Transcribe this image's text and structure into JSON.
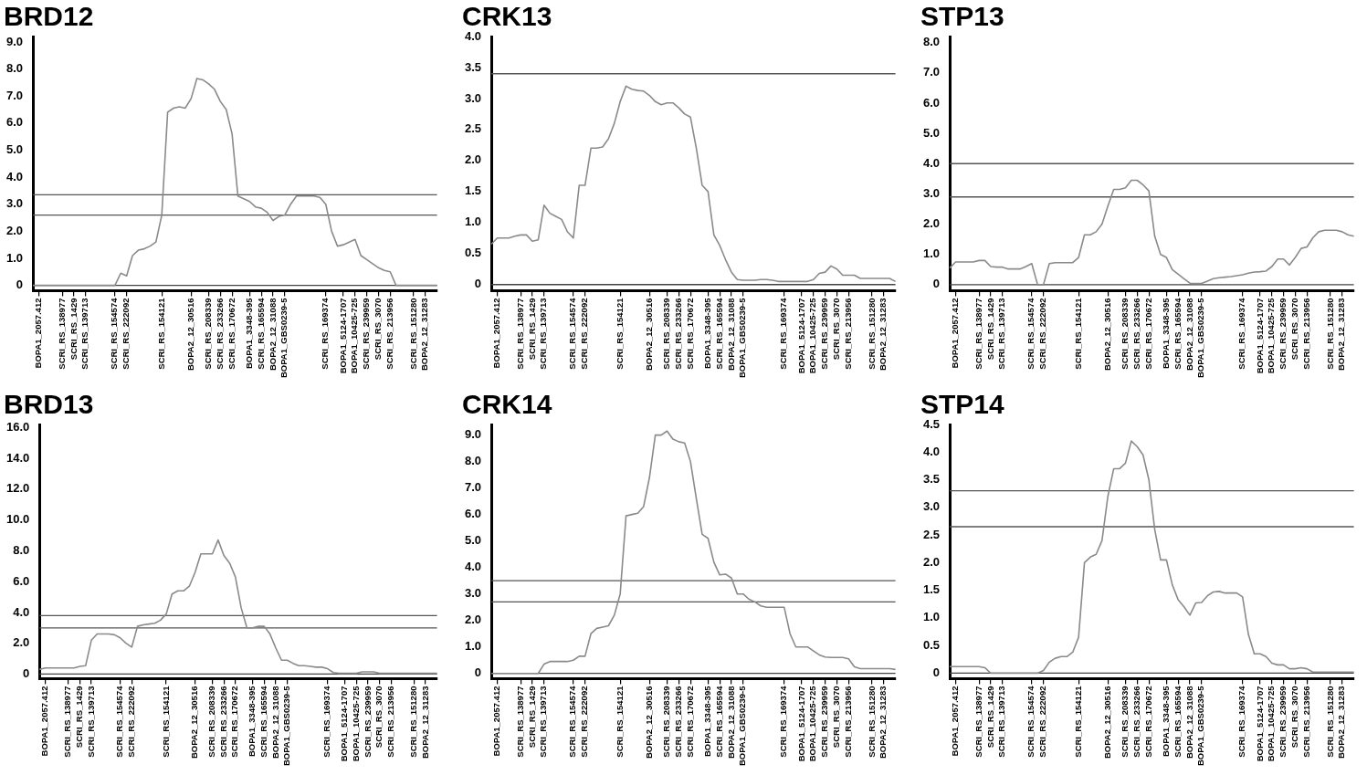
{
  "chart_data": [
    {
      "type": "line",
      "title": "BRD12",
      "categories": [
        null,
        "BOPA1_2057.412",
        null,
        null,
        null,
        "SCRI_RS_138977",
        null,
        "SCRI_RS_1429",
        null,
        "SCRI_RS_139713",
        null,
        null,
        null,
        null,
        "SCRI_RS_154574",
        null,
        "SCRI_RS_222092",
        null,
        null,
        null,
        null,
        null,
        "SCRI_RS_154121",
        null,
        null,
        null,
        null,
        "BOPA2_12_30516",
        null,
        null,
        "SCRI_RS_208339",
        null,
        "SCRI_RS_233266",
        null,
        "SCRI_RS_170672",
        null,
        null,
        "BOPA1_3348-395",
        null,
        "SCRI_RS_165594",
        null,
        "BOPA2_12_31088",
        null,
        "BOPA1_GBS0239-5",
        null,
        null,
        null,
        null,
        null,
        null,
        "SCRI_RS_169374",
        null,
        null,
        "BOPA1_5124-1707",
        null,
        "BOPA1_10425-725",
        null,
        "SCRI_RS_239959",
        null,
        "SCRI_RS_3070",
        null,
        "SCRI_RS_213956",
        null,
        null,
        null,
        "SCRI_RS_151280",
        null,
        "BOPA2_12_31283",
        null,
        null
      ],
      "series": [
        {
          "color": "#8a8a8a",
          "values": [
            0,
            0,
            0,
            0,
            0,
            0,
            0,
            0,
            0,
            0,
            0,
            0,
            0,
            0,
            0,
            0.45,
            0.35,
            1.1,
            1.3,
            1.35,
            1.45,
            1.6,
            2.6,
            6.4,
            6.55,
            6.6,
            6.55,
            6.9,
            7.65,
            7.6,
            7.45,
            7.25,
            6.8,
            6.5,
            5.6,
            3.3,
            3.2,
            3.1,
            2.9,
            2.85,
            2.7,
            2.4,
            2.55,
            2.6,
            3.0,
            3.3,
            3.3,
            3.3,
            3.3,
            3.25,
            3.0,
            2.0,
            1.45,
            1.5,
            1.6,
            1.7,
            1.1,
            0.95,
            0.8,
            0.65,
            0.55,
            0.5,
            0,
            0,
            0,
            0,
            0,
            0,
            0,
            0
          ]
        }
      ],
      "ylim": [
        -0.2,
        9.2
      ],
      "yticks": [
        0,
        {
          "value": 1,
          "label": "1.0"
        },
        {
          "value": 2,
          "label": "2.0"
        },
        {
          "value": 3,
          "label": "3.0"
        },
        {
          "value": 4,
          "label": "4.0"
        },
        {
          "value": 5,
          "label": "5.0"
        },
        {
          "value": 6,
          "label": "6.0"
        },
        {
          "value": 7,
          "label": "7.0"
        },
        {
          "value": 8,
          "label": "8.0"
        },
        {
          "value": 9,
          "label": "9.0"
        }
      ],
      "ref_lines": [
        {
          "axis": "y",
          "value": 3.35,
          "color": "#555555"
        },
        {
          "axis": "y",
          "value": 2.6,
          "color": "#555555"
        },
        {
          "axis": "y",
          "value": 0,
          "color": "#444444"
        }
      ]
    },
    {
      "type": "line",
      "title": "CRK13",
      "categories": [
        null,
        "BOPA1_2057.412",
        null,
        null,
        null,
        "SCRI_RS_138977",
        null,
        "SCRI_RS_1429",
        null,
        "SCRI_RS_139713",
        null,
        null,
        null,
        null,
        "SCRI_RS_154574",
        null,
        "SCRI_RS_222092",
        null,
        null,
        null,
        null,
        null,
        "SCRI_RS_154121",
        null,
        null,
        null,
        null,
        "BOPA2_12_30516",
        null,
        null,
        "SCRI_RS_208339",
        null,
        "SCRI_RS_233266",
        null,
        "SCRI_RS_170672",
        null,
        null,
        "BOPA1_3348-395",
        null,
        "SCRI_RS_165594",
        null,
        "BOPA2_12_31088",
        null,
        "BOPA1_GBS0239-5",
        null,
        null,
        null,
        null,
        null,
        null,
        "SCRI_RS_169374",
        null,
        null,
        "BOPA1_5124-1707",
        null,
        "BOPA1_10425-725",
        null,
        "SCRI_RS_239959",
        null,
        "SCRI_RS_3070",
        null,
        "SCRI_RS_213956",
        null,
        null,
        null,
        "SCRI_RS_151280",
        null,
        "BOPA2_12_31283",
        null,
        null
      ],
      "series": [
        {
          "color": "#8a8a8a",
          "values": [
            0.65,
            0.75,
            0.75,
            0.75,
            0.78,
            0.8,
            0.8,
            0.7,
            0.72,
            1.28,
            1.15,
            1.1,
            1.05,
            0.85,
            0.75,
            1.6,
            1.6,
            2.2,
            2.2,
            2.22,
            2.35,
            2.6,
            2.95,
            3.2,
            3.15,
            3.13,
            3.12,
            3.05,
            2.95,
            2.9,
            2.93,
            2.93,
            2.85,
            2.75,
            2.7,
            2.2,
            1.6,
            1.5,
            0.8,
            0.63,
            0.4,
            0.2,
            0.08,
            0.07,
            0.07,
            0.07,
            0.08,
            0.08,
            0.07,
            0.05,
            0.05,
            0.05,
            0.05,
            0.05,
            0.05,
            0.08,
            0.18,
            0.2,
            0.3,
            0.25,
            0.15,
            0.15,
            0.15,
            0.1,
            0.1,
            0.1,
            0.1,
            0.1,
            0.1,
            0.05
          ]
        }
      ],
      "ylim": [
        -0.1,
        4.0
      ],
      "yticks": [
        0,
        0.5,
        {
          "value": 1,
          "label": "1.0"
        },
        1.5,
        {
          "value": 2,
          "label": "2.0"
        },
        2.5,
        {
          "value": 3,
          "label": "3.0"
        },
        3.5,
        {
          "value": 4,
          "label": "4.0"
        }
      ],
      "ref_lines": [
        {
          "axis": "y",
          "value": 3.4,
          "color": "#555555"
        },
        {
          "axis": "y",
          "value": 0,
          "color": "#444444"
        }
      ]
    },
    {
      "type": "line",
      "title": "STP13",
      "categories": [
        null,
        "BOPA1_2057.412",
        null,
        null,
        null,
        "SCRI_RS_138977",
        null,
        "SCRI_RS_1429",
        null,
        "SCRI_RS_139713",
        null,
        null,
        null,
        null,
        "SCRI_RS_154574",
        null,
        "SCRI_RS_222092",
        null,
        null,
        null,
        null,
        null,
        "SCRI_RS_154121",
        null,
        null,
        null,
        null,
        "BOPA2_12_30516",
        null,
        null,
        "SCRI_RS_208339",
        null,
        "SCRI_RS_233266",
        null,
        "SCRI_RS_170672",
        null,
        null,
        "BOPA1_3348-395",
        null,
        "SCRI_RS_165594",
        null,
        "BOPA2_12_31088",
        null,
        "BOPA1_GBS0239-5",
        null,
        null,
        null,
        null,
        null,
        null,
        "SCRI_RS_169374",
        null,
        null,
        "BOPA1_5124-1707",
        null,
        "BOPA1_10425-725",
        null,
        "SCRI_RS_239959",
        null,
        "SCRI_RS_3070",
        null,
        "SCRI_RS_213956",
        null,
        null,
        null,
        "SCRI_RS_151280",
        null,
        "BOPA2_12_31283",
        null,
        null
      ],
      "series": [
        {
          "color": "#8a8a8a",
          "values": [
            0.55,
            0.75,
            0.75,
            0.75,
            0.75,
            0.8,
            0.8,
            0.6,
            0.58,
            0.58,
            0.52,
            0.52,
            0.52,
            0.6,
            0.7,
            0,
            0,
            0.7,
            0.73,
            0.73,
            0.73,
            0.73,
            0.9,
            1.65,
            1.65,
            1.75,
            2.0,
            2.6,
            3.15,
            3.15,
            3.2,
            3.45,
            3.45,
            3.3,
            3.1,
            1.6,
            1.0,
            0.9,
            0.5,
            0.35,
            0.2,
            0.05,
            0.04,
            0.04,
            0.12,
            0.2,
            0.23,
            0.25,
            0.27,
            0.3,
            0.33,
            0.38,
            0.42,
            0.43,
            0.45,
            0.6,
            0.85,
            0.85,
            0.65,
            0.9,
            1.2,
            1.25,
            1.55,
            1.75,
            1.8,
            1.8,
            1.8,
            1.75,
            1.65,
            1.6
          ]
        }
      ],
      "ylim": [
        -0.2,
        8.2
      ],
      "yticks": [
        0,
        {
          "value": 1,
          "label": "1.0"
        },
        {
          "value": 2,
          "label": "2.0"
        },
        {
          "value": 3,
          "label": "3.0"
        },
        {
          "value": 4,
          "label": "4.0"
        },
        {
          "value": 5,
          "label": "5.0"
        },
        {
          "value": 6,
          "label": "6.0"
        },
        {
          "value": 7,
          "label": "7.0"
        },
        {
          "value": 8,
          "label": "8.0"
        }
      ],
      "ref_lines": [
        {
          "axis": "y",
          "value": 4.0,
          "color": "#555555"
        },
        {
          "axis": "y",
          "value": 2.9,
          "color": "#555555"
        },
        {
          "axis": "y",
          "value": 0,
          "color": "#444444"
        }
      ]
    },
    {
      "type": "line",
      "title": "BRD13",
      "categories": [
        null,
        "BOPA1_2057.412",
        null,
        null,
        null,
        "SCRI_RS_138977",
        null,
        "SCRI_RS_1429",
        null,
        "SCRI_RS_139713",
        null,
        null,
        null,
        null,
        "SCRI_RS_154574",
        null,
        "SCRI_RS_222092",
        null,
        null,
        null,
        null,
        null,
        "SCRI_RS_154121",
        null,
        null,
        null,
        null,
        "BOPA2_12_30516",
        null,
        null,
        "SCRI_RS_208339",
        null,
        "SCRI_RS_233266",
        null,
        "SCRI_RS_170672",
        null,
        null,
        "BOPA1_3348-395",
        null,
        "SCRI_RS_165594",
        null,
        "BOPA2_12_31088",
        null,
        "BOPA1_GBS0239-5",
        null,
        null,
        null,
        null,
        null,
        null,
        "SCRI_RS_169374",
        null,
        null,
        "BOPA1_5124-1707",
        null,
        "BOPA1_10425-725",
        null,
        "SCRI_RS_239959",
        null,
        "SCRI_RS_3070",
        null,
        "SCRI_RS_213956",
        null,
        null,
        null,
        "SCRI_RS_151280",
        null,
        "BOPA2_12_31283",
        null,
        null
      ],
      "series": [
        {
          "color": "#8a8a8a",
          "values": [
            0.3,
            0.4,
            0.4,
            0.4,
            0.4,
            0.4,
            0.4,
            0.5,
            0.55,
            2.2,
            2.6,
            2.6,
            2.6,
            2.55,
            2.35,
            2.0,
            1.75,
            3.1,
            3.2,
            3.25,
            3.3,
            3.5,
            3.9,
            5.2,
            5.4,
            5.4,
            5.7,
            6.6,
            7.8,
            7.8,
            7.8,
            8.7,
            7.7,
            7.2,
            6.3,
            4.3,
            3.0,
            3.0,
            3.1,
            3.1,
            2.6,
            1.7,
            0.9,
            0.9,
            0.7,
            0.55,
            0.55,
            0.5,
            0.45,
            0.45,
            0.35,
            0.1,
            0.05,
            0.05,
            0.05,
            0.05,
            0.15,
            0.15,
            0.15,
            0.05,
            0.05,
            0.05,
            0.05,
            0.05,
            0.05,
            0.05,
            0.05,
            0.05,
            0.05,
            0.05
          ]
        }
      ],
      "ylim": [
        -0.3,
        16.2
      ],
      "yticks": [
        0,
        {
          "value": 2,
          "label": "2.0"
        },
        {
          "value": 4,
          "label": "4.0"
        },
        {
          "value": 6,
          "label": "6.0"
        },
        {
          "value": 8,
          "label": "8.0"
        },
        {
          "value": 10,
          "label": "10.0"
        },
        {
          "value": 12,
          "label": "12.0"
        },
        {
          "value": 14,
          "label": "14.0"
        },
        {
          "value": 16,
          "label": "16.0"
        }
      ],
      "ref_lines": [
        {
          "axis": "y",
          "value": 3.8,
          "color": "#555555"
        },
        {
          "axis": "y",
          "value": 3.0,
          "color": "#555555"
        },
        {
          "axis": "y",
          "value": 0,
          "color": "#444444"
        }
      ]
    },
    {
      "type": "line",
      "title": "CRK14",
      "categories": [
        null,
        "BOPA1_2057.412",
        null,
        null,
        null,
        "SCRI_RS_138977",
        null,
        "SCRI_RS_1429",
        null,
        "SCRI_RS_139713",
        null,
        null,
        null,
        null,
        "SCRI_RS_154574",
        null,
        "SCRI_RS_222092",
        null,
        null,
        null,
        null,
        null,
        "SCRI_RS_154121",
        null,
        null,
        null,
        null,
        "BOPA2_12_30516",
        null,
        null,
        "SCRI_RS_208339",
        null,
        "SCRI_RS_233266",
        null,
        "SCRI_RS_170672",
        null,
        null,
        "BOPA1_3348-395",
        null,
        "SCRI_RS_165594",
        null,
        "BOPA2_12_31088",
        null,
        "BOPA1_GBS0239-5",
        null,
        null,
        null,
        null,
        null,
        null,
        "SCRI_RS_169374",
        null,
        null,
        "BOPA1_5124-1707",
        null,
        "BOPA1_10425-725",
        null,
        "SCRI_RS_239959",
        null,
        "SCRI_RS_3070",
        null,
        "SCRI_RS_213956",
        null,
        null,
        null,
        "SCRI_RS_151280",
        null,
        "BOPA2_12_31283",
        null,
        null
      ],
      "series": [
        {
          "color": "#8a8a8a",
          "values": [
            0,
            0,
            0,
            0,
            0,
            0,
            0,
            0,
            0,
            0.35,
            0.45,
            0.45,
            0.45,
            0.45,
            0.5,
            0.65,
            0.65,
            1.5,
            1.7,
            1.75,
            1.8,
            2.2,
            3.0,
            5.95,
            6.0,
            6.05,
            6.3,
            7.4,
            9.0,
            9.0,
            9.15,
            8.85,
            8.75,
            8.7,
            8.0,
            6.6,
            5.25,
            5.1,
            4.2,
            3.72,
            3.75,
            3.6,
            3.0,
            3.0,
            2.8,
            2.7,
            2.55,
            2.5,
            2.5,
            2.5,
            2.5,
            1.5,
            1.0,
            1.0,
            1.0,
            0.85,
            0.7,
            0.62,
            0.6,
            0.6,
            0.6,
            0.55,
            0.25,
            0.18,
            0.18,
            0.18,
            0.18,
            0.18,
            0.18,
            0.15
          ]
        }
      ],
      "ylim": [
        -0.2,
        9.4
      ],
      "yticks": [
        0,
        {
          "value": 1,
          "label": "1.0"
        },
        {
          "value": 2,
          "label": "2.0"
        },
        {
          "value": 3,
          "label": "3.0"
        },
        {
          "value": 4,
          "label": "4.0"
        },
        {
          "value": 5,
          "label": "5.0"
        },
        {
          "value": 6,
          "label": "6.0"
        },
        {
          "value": 7,
          "label": "7.0"
        },
        {
          "value": 8,
          "label": "8.0"
        },
        {
          "value": 9,
          "label": "9.0"
        }
      ],
      "ref_lines": [
        {
          "axis": "y",
          "value": 3.5,
          "color": "#555555"
        },
        {
          "axis": "y",
          "value": 2.7,
          "color": "#555555"
        },
        {
          "axis": "y",
          "value": 0,
          "color": "#444444"
        }
      ]
    },
    {
      "type": "line",
      "title": "STP14",
      "categories": [
        null,
        "BOPA1_2057.412",
        null,
        null,
        null,
        "SCRI_RS_138977",
        null,
        "SCRI_RS_1429",
        null,
        "SCRI_RS_139713",
        null,
        null,
        null,
        null,
        "SCRI_RS_154574",
        null,
        "SCRI_RS_222092",
        null,
        null,
        null,
        null,
        null,
        "SCRI_RS_154121",
        null,
        null,
        null,
        null,
        "BOPA2_12_30516",
        null,
        null,
        "SCRI_RS_208339",
        null,
        "SCRI_RS_233266",
        null,
        "SCRI_RS_170672",
        null,
        null,
        "BOPA1_3348-395",
        null,
        "SCRI_RS_165594",
        null,
        "BOPA2_12_31088",
        null,
        "BOPA1_GBS0239-5",
        null,
        null,
        null,
        null,
        null,
        null,
        "SCRI_RS_169374",
        null,
        null,
        "BOPA1_5124-1707",
        null,
        "BOPA1_10425-725",
        null,
        "SCRI_RS_239959",
        null,
        "SCRI_RS_3070",
        null,
        "SCRI_RS_213956",
        null,
        null,
        null,
        "SCRI_RS_151280",
        null,
        "BOPA2_12_31283",
        null,
        null
      ],
      "series": [
        {
          "color": "#8a8a8a",
          "values": [
            0.12,
            0.12,
            0.12,
            0.12,
            0.12,
            0.12,
            0.1,
            0,
            0,
            0,
            0,
            0,
            0,
            0,
            0,
            0,
            0.05,
            0.2,
            0.27,
            0.3,
            0.3,
            0.38,
            0.65,
            2.0,
            2.1,
            2.15,
            2.4,
            3.2,
            3.7,
            3.7,
            3.8,
            4.2,
            4.1,
            3.95,
            3.5,
            2.6,
            2.05,
            2.05,
            1.6,
            1.33,
            1.2,
            1.05,
            1.27,
            1.28,
            1.4,
            1.47,
            1.48,
            1.45,
            1.45,
            1.45,
            1.38,
            0.7,
            0.35,
            0.35,
            0.3,
            0.18,
            0.15,
            0.15,
            0.08,
            0.08,
            0.1,
            0.08,
            0.02,
            0.02,
            0.02,
            0.02,
            0.02,
            0.02,
            0.02,
            0.02
          ]
        }
      ],
      "ylim": [
        -0.1,
        4.5
      ],
      "yticks": [
        0,
        0.5,
        {
          "value": 1,
          "label": "1.0"
        },
        1.5,
        {
          "value": 2,
          "label": "2.0"
        },
        2.5,
        {
          "value": 3,
          "label": "3.0"
        },
        3.5,
        {
          "value": 4,
          "label": "4.0"
        },
        4.5
      ],
      "ref_lines": [
        {
          "axis": "y",
          "value": 3.3,
          "color": "#555555"
        },
        {
          "axis": "y",
          "value": 2.65,
          "color": "#555555"
        },
        {
          "axis": "y",
          "value": 0,
          "color": "#444444"
        }
      ]
    }
  ]
}
